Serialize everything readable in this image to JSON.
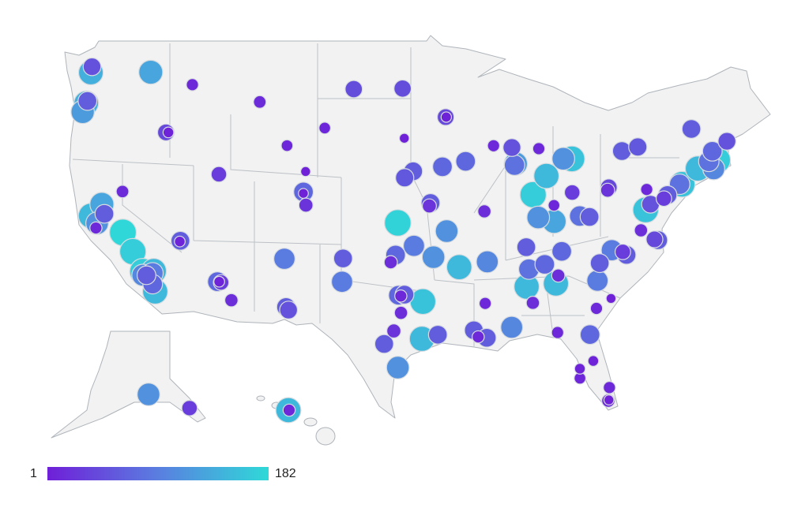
{
  "chart_data": {
    "type": "bubble_map",
    "lon": [
      -122.3,
      -122.2,
      -122.7,
      -122.6,
      -123.0,
      -117.4,
      -114.0,
      -116.2,
      -116.0,
      -108.5,
      -100.8,
      -96.8,
      -93.3,
      -93.25,
      -96.7,
      -103.2,
      -106.3,
      -104.8,
      -104.99,
      -105.0,
      -104.8,
      -111.9,
      -119.8,
      -122.4,
      -121.5,
      -121.9,
      -122.0,
      -121.3,
      -119.8,
      -119.0,
      -118.2,
      -118.2,
      -117.4,
      -117.9,
      -117.3,
      -117.2,
      -117.4,
      -115.1,
      -115.15,
      -112.1,
      -111.8,
      -111.95,
      -110.97,
      -106.6,
      -106.5,
      -106.3,
      -101.8,
      -101.9,
      -97.5,
      -97.9,
      -95.99,
      -97.3,
      -94.6,
      -94.7,
      -96.0,
      -96.7,
      -93.6,
      -91.7,
      -93.3,
      -92.3,
      -94.4,
      -90.2,
      -96.8,
      -97.3,
      -97.1,
      -95.3,
      -97.7,
      -97.1,
      -95.4,
      -94.1,
      -98.5,
      -97.4,
      -90.0,
      -90.2,
      -91.15,
      -90.1,
      -90.8,
      -88.05,
      -86.8,
      -86.6,
      -86.3,
      -84.4,
      -84.2,
      -86.8,
      -85.3,
      -83.9,
      -84.3,
      -81.65,
      -81.4,
      -82.5,
      -82.5,
      -80.1,
      -80.2,
      -80.15,
      -81.1,
      -79.9,
      -81.0,
      -80.8,
      -79.8,
      -78.6,
      -78.9,
      -77.4,
      -76.0,
      -76.3,
      -77.0,
      -76.6,
      -75.2,
      -74.0,
      -74.2,
      -75.5,
      -76.9,
      -80.0,
      -80.1,
      -78.9,
      -77.6,
      -73.2,
      -71.1,
      -71.4,
      -72.7,
      -71.8,
      -70.3,
      -71.5,
      -83.0,
      -83.7,
      -85.7,
      -87.6,
      -87.7,
      -87.9,
      -89.4,
      -86.2,
      -85.1,
      -83.0,
      -84.5,
      -85.8,
      -84.5,
      -81.6,
      -82.4,
      -149.9,
      -134.4,
      -157.9,
      -157.85
    ],
    "lat": [
      47.6,
      48.0,
      45.5,
      45.65,
      44.9,
      47.7,
      46.9,
      43.6,
      43.6,
      45.8,
      46.8,
      46.9,
      45.0,
      45.0,
      43.5,
      44.1,
      42.85,
      41.1,
      39.7,
      39.6,
      38.8,
      40.8,
      39.5,
      37.8,
      38.6,
      37.3,
      36.97,
      37.95,
      36.7,
      35.4,
      34.05,
      33.8,
      33.95,
      33.8,
      34.1,
      32.7,
      33.2,
      36.2,
      36.15,
      33.45,
      33.4,
      33.45,
      32.2,
      35.1,
      31.8,
      31.6,
      35.2,
      33.6,
      35.5,
      35.0,
      36.15,
      37.7,
      39.1,
      38.9,
      41.25,
      40.8,
      41.6,
      42.0,
      37.2,
      34.75,
      35.4,
      38.6,
      32.8,
      32.75,
      32.7,
      32.35,
      30.3,
      31.55,
      29.8,
      30.1,
      29.4,
      27.8,
      35.15,
      32.3,
      30.45,
      29.95,
      30.0,
      30.7,
      33.5,
      34.7,
      32.4,
      33.75,
      34.3,
      36.2,
      35.05,
      35.96,
      30.4,
      30.3,
      28.5,
      27.95,
      27.3,
      26.7,
      25.8,
      25.85,
      32.1,
      32.8,
      34.0,
      35.2,
      36.1,
      35.8,
      36.0,
      37.5,
      36.85,
      36.9,
      38.9,
      39.3,
      39.95,
      40.7,
      40.7,
      39.7,
      40.3,
      40.4,
      40.2,
      42.9,
      43.2,
      44.5,
      42.4,
      41.8,
      41.8,
      42.3,
      43.7,
      43.0,
      42.3,
      42.3,
      42.96,
      41.9,
      41.8,
      43.0,
      43.1,
      39.8,
      41.1,
      40.0,
      39.1,
      38.25,
      38.0,
      38.35,
      38.4,
      61.2,
      58.3,
      21.3,
      21.3
    ],
    "values": [
      140,
      50,
      140,
      60,
      120,
      130,
      10,
      40,
      5,
      12,
      45,
      45,
      40,
      4,
      3,
      8,
      8,
      3,
      70,
      3,
      20,
      30,
      12,
      150,
      130,
      110,
      10,
      60,
      180,
      170,
      170,
      100,
      90,
      60,
      150,
      150,
      70,
      60,
      5,
      70,
      30,
      5,
      15,
      90,
      60,
      50,
      60,
      90,
      70,
      15,
      90,
      175,
      60,
      20,
      60,
      55,
      70,
      70,
      110,
      150,
      110,
      15,
      60,
      70,
      10,
      160,
      20,
      15,
      150,
      60,
      60,
      110,
      100,
      10,
      60,
      60,
      10,
      100,
      150,
      80,
      15,
      150,
      15,
      60,
      70,
      70,
      10,
      70,
      5,
      5,
      8,
      10,
      15,
      3,
      10,
      3,
      90,
      60,
      90,
      60,
      30,
      15,
      60,
      40,
      160,
      50,
      60,
      160,
      80,
      30,
      10,
      40,
      20,
      60,
      55,
      60,
      170,
      100,
      150,
      80,
      50,
      70,
      160,
      110,
      10,
      120,
      80,
      50,
      10,
      170,
      150,
      30,
      8,
      110,
      130,
      60,
      80,
      110,
      30,
      150,
      10
    ],
    "colorscale": {
      "min": 1,
      "max": 182,
      "colors": [
        "#6f1fd8",
        "#5a7ee0",
        "#2fd9d8"
      ]
    }
  }
}
